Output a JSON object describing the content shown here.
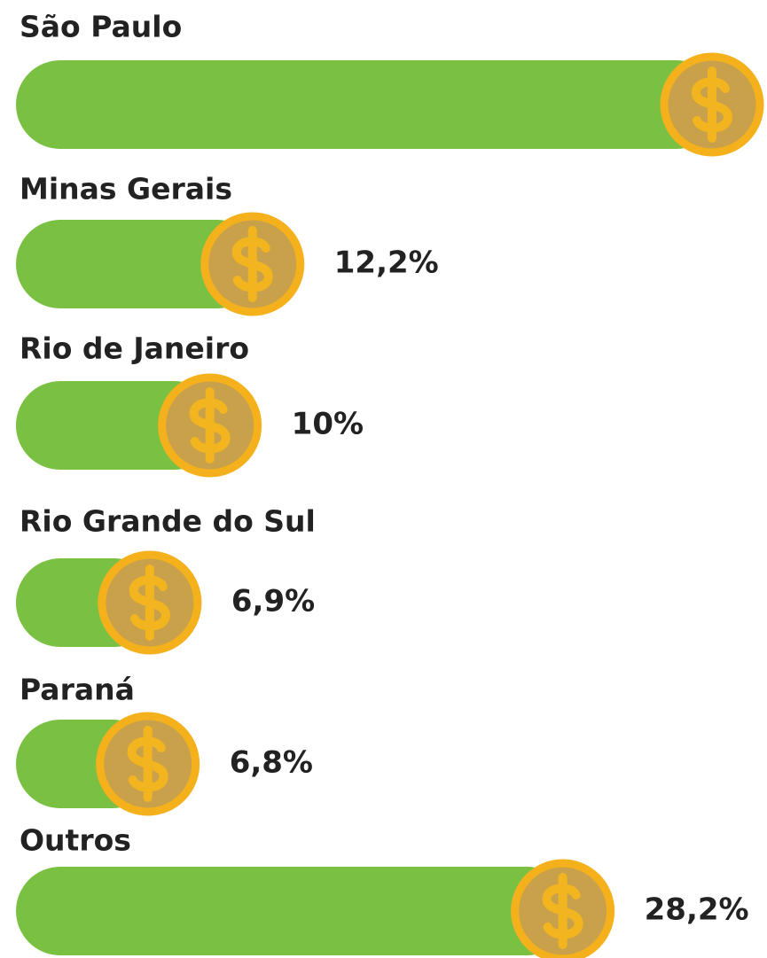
{
  "chart_data": {
    "type": "bar",
    "orientation": "horizontal",
    "categories": [
      "São Paulo",
      "Minas Gerais",
      "Rio de Janeiro",
      "Rio Grande do Sul",
      "Paraná",
      "Outros"
    ],
    "values": [
      35.9,
      12.2,
      10,
      6.9,
      6.8,
      28.2
    ],
    "value_labels": [
      null,
      "12,2%",
      "10%",
      "6,9%",
      "6,8%",
      "28,2%"
    ],
    "color": "#7ac143"
  }
}
